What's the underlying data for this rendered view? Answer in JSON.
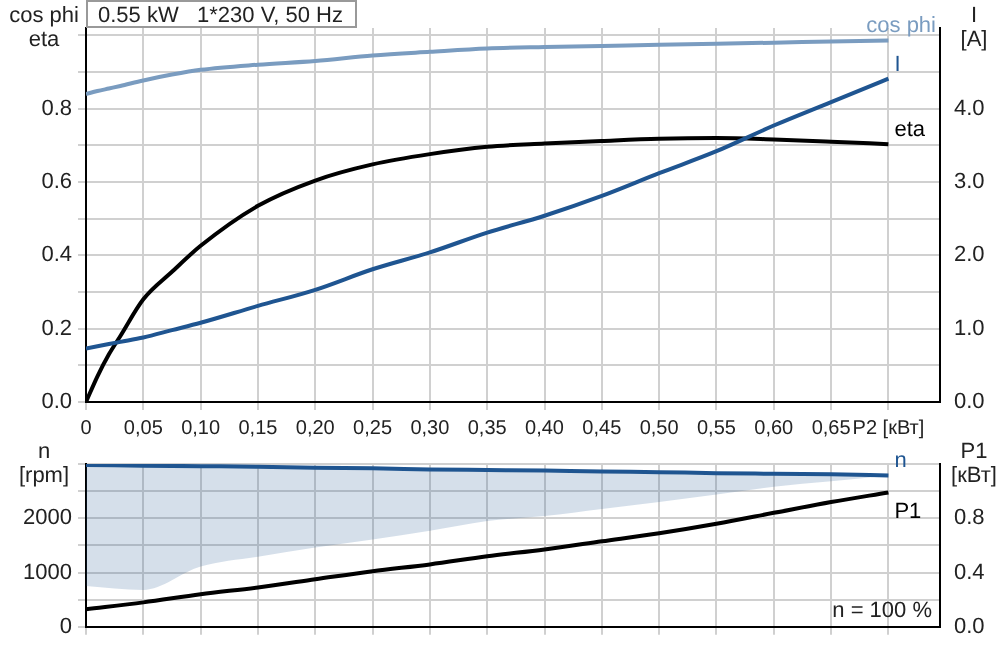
{
  "chart_data": [
    {
      "type": "line",
      "title": "0.55 kW   1*230 V, 50 Hz",
      "ylabel": "cos phi\neta",
      "y2label": "I\n[A]",
      "x": [
        0,
        0.01,
        0.02,
        0.03,
        0.05,
        0.075,
        0.1,
        0.15,
        0.2,
        0.25,
        0.3,
        0.35,
        0.4,
        0.45,
        0.5,
        0.55,
        0.6,
        0.65,
        0.7
      ],
      "series": [
        {
          "name": "cos phi",
          "color": "#7a9cc0",
          "values": [
            0.84,
            0.848,
            0.855,
            0.862,
            0.877,
            0.893,
            0.906,
            0.92,
            0.93,
            0.945,
            0.955,
            0.964,
            0.968,
            0.971,
            0.974,
            0.977,
            0.98,
            0.983,
            0.986
          ]
        },
        {
          "name": "I",
          "color": "#1f5591",
          "axis": "y2",
          "values": [
            0.73,
            0.76,
            0.79,
            0.82,
            0.88,
            0.98,
            1.08,
            1.31,
            1.53,
            1.81,
            2.04,
            2.31,
            2.54,
            2.81,
            3.12,
            3.42,
            3.77,
            4.09,
            4.41
          ]
        },
        {
          "name": "eta",
          "color": "#000000",
          "values": [
            0,
            0.07,
            0.13,
            0.18,
            0.28,
            0.355,
            0.426,
            0.535,
            0.604,
            0.648,
            0.676,
            0.696,
            0.705,
            0.712,
            0.718,
            0.72,
            0.716,
            0.71,
            0.703
          ]
        }
      ],
      "xlim": [
        0,
        0.745
      ],
      "xticks": [
        0,
        {
          "value": 0.05,
          "label": "0,05"
        },
        {
          "value": 0.1,
          "label": "0,10"
        },
        {
          "value": 0.15,
          "label": "0,15"
        },
        {
          "value": 0.2,
          "label": "0,20"
        },
        {
          "value": 0.25,
          "label": "0,25"
        },
        {
          "value": 0.3,
          "label": "0,30"
        },
        {
          "value": 0.35,
          "label": "0,35"
        },
        {
          "value": 0.4,
          "label": "0,40"
        },
        {
          "value": 0.45,
          "label": "0,45"
        },
        {
          "value": 0.5,
          "label": "0,50"
        },
        {
          "value": 0.55,
          "label": "0,55"
        },
        {
          "value": 0.6,
          "label": "0,60"
        },
        {
          "value": 0.65,
          "label": "0,65"
        },
        {
          "value": 0.7,
          "label": "P2 [кВт]"
        }
      ],
      "ylim": [
        0,
        1.02
      ],
      "yticks": [
        {
          "value": 0,
          "label": "0.0"
        },
        {
          "value": 0.1,
          "label": null
        },
        {
          "value": 0.2,
          "label": "0.2"
        },
        {
          "value": 0.3,
          "label": null
        },
        {
          "value": 0.4,
          "label": "0.4"
        },
        {
          "value": 0.5,
          "label": null
        },
        {
          "value": 0.6,
          "label": "0.6"
        },
        {
          "value": 0.7,
          "label": null
        },
        {
          "value": 0.8,
          "label": "0.8"
        },
        {
          "value": 0.9,
          "label": null
        },
        {
          "value": 1,
          "label": null
        }
      ],
      "y2lim": [
        0,
        5.1
      ],
      "y2ticks": [
        {
          "value": 0,
          "label": "0.0"
        },
        {
          "value": 0.5,
          "label": null
        },
        {
          "value": 1,
          "label": "1.0"
        },
        {
          "value": 1.5,
          "label": null
        },
        {
          "value": 2,
          "label": "2.0"
        },
        {
          "value": 2.5,
          "label": null
        },
        {
          "value": 3,
          "label": "3.0"
        },
        {
          "value": 3.5,
          "label": null
        },
        {
          "value": 4,
          "label": "4.0"
        },
        {
          "value": 4.5,
          "label": null
        },
        {
          "value": 5,
          "label": null
        }
      ],
      "grid": true,
      "legend": false
    },
    {
      "type": "line",
      "ylabel": "n\n[rpm]",
      "y2label": "P1\n[кВт]",
      "x": [
        0,
        0.05,
        0.1,
        0.15,
        0.2,
        0.25,
        0.3,
        0.35,
        0.4,
        0.45,
        0.5,
        0.55,
        0.6,
        0.65,
        0.7
      ],
      "series": [
        {
          "name": "n",
          "color": "#1f5591",
          "values": [
            2980,
            2970,
            2960,
            2950,
            2930,
            2920,
            2900,
            2890,
            2880,
            2860,
            2850,
            2830,
            2820,
            2810,
            2790
          ],
          "lower": [
            750,
            680,
            1110,
            1290,
            1460,
            1610,
            1770,
            1950,
            2040,
            2170,
            2300,
            2440,
            2580,
            2680,
            2790
          ],
          "upper": [
            2980,
            2970,
            2960,
            2950,
            2930,
            2920,
            2900,
            2890,
            2880,
            2860,
            2850,
            2830,
            2820,
            2810,
            2790
          ]
        },
        {
          "name": "P1",
          "color": "#000000",
          "axis": "y2",
          "values": [
            0.13,
            0.18,
            0.24,
            0.29,
            0.35,
            0.41,
            0.46,
            0.52,
            0.57,
            0.63,
            0.69,
            0.76,
            0.84,
            0.92,
            0.99
          ]
        }
      ],
      "xlim": [
        0,
        0.745
      ],
      "xticks": [
        0,
        0.05,
        0.1,
        0.15,
        0.2,
        0.25,
        0.3,
        0.35,
        0.4,
        0.45,
        0.5,
        0.55,
        0.6,
        0.65,
        0.7
      ],
      "ylim": [
        0,
        3000
      ],
      "yticks": [
        0,
        {
          "value": 500,
          "label": null
        },
        1000,
        {
          "value": 1500,
          "label": null
        },
        2000,
        {
          "value": 2500,
          "label": null
        },
        {
          "value": 3000,
          "label": null
        }
      ],
      "y2lim": [
        0,
        1.2
      ],
      "y2ticks": [
        {
          "value": 0,
          "label": "0.0"
        },
        {
          "value": 0.2,
          "label": null
        },
        {
          "value": 0.4,
          "label": "0.4"
        },
        {
          "value": 0.6,
          "label": null
        },
        {
          "value": 0.8,
          "label": "0.8"
        },
        {
          "value": 1,
          "label": null
        },
        {
          "value": 1.2,
          "label": null
        }
      ],
      "grid": true,
      "legend": false,
      "tick_labels": "y",
      "annotations": [
        "n = 100 %"
      ]
    }
  ]
}
